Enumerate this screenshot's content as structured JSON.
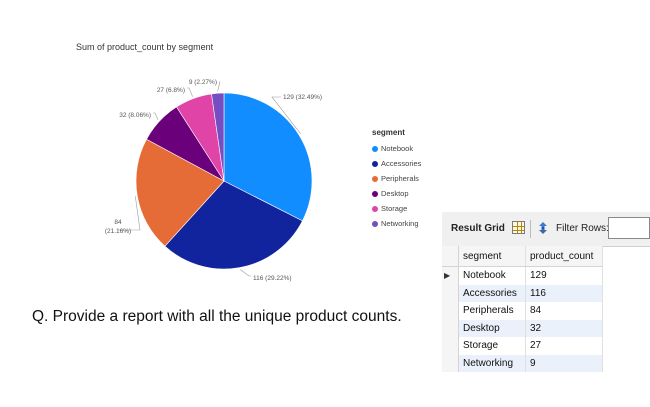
{
  "chart_data": {
    "type": "pie",
    "title": "Sum of product_count by segment",
    "legend_title": "segment",
    "legend_position": "right",
    "slices": [
      {
        "label": "Notebook",
        "value": 129,
        "percent_label": "129 (32.49%)",
        "color": "#118dff"
      },
      {
        "label": "Accessories",
        "value": 116,
        "percent_label": "116 (29.22%)",
        "color": "#12239e"
      },
      {
        "label": "Peripherals",
        "value": 84,
        "percent_label": "84 (21.16%)",
        "color": "#e66c37"
      },
      {
        "label": "Desktop",
        "value": 32,
        "percent_label": "32 (8.06%)",
        "color": "#6b007b"
      },
      {
        "label": "Storage",
        "value": 27,
        "percent_label": "27 (6.8%)",
        "color": "#e044a7"
      },
      {
        "label": "Networking",
        "value": 9,
        "percent_label": "9 (2.27%)",
        "color": "#744ec2"
      }
    ]
  },
  "question": "Q. Provide a report with all the unique product counts.",
  "result_grid": {
    "toolbar_label": "Result Grid",
    "filter_label": "Filter Rows:",
    "filter_value": "",
    "columns": [
      "segment",
      "product_count"
    ],
    "rows": [
      {
        "segment": "Notebook",
        "product_count": "129"
      },
      {
        "segment": "Accessories",
        "product_count": "116"
      },
      {
        "segment": "Peripherals",
        "product_count": "84"
      },
      {
        "segment": "Desktop",
        "product_count": "32"
      },
      {
        "segment": "Storage",
        "product_count": "27"
      },
      {
        "segment": "Networking",
        "product_count": "9"
      }
    ],
    "selected_row_marker": "▶"
  }
}
